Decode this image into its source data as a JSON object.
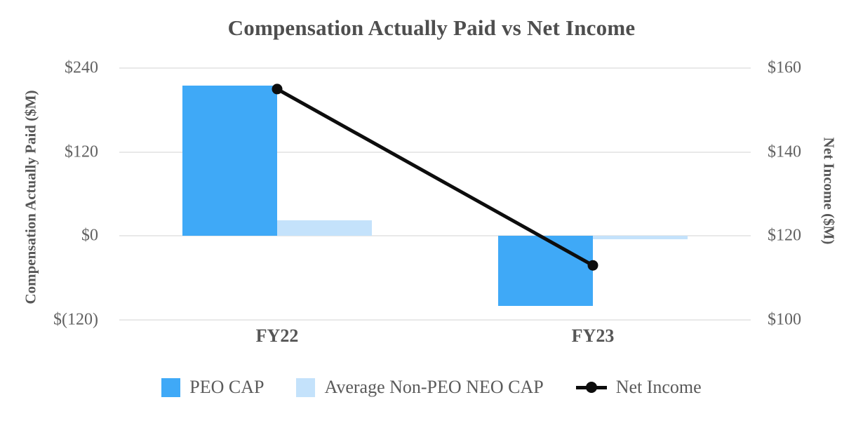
{
  "title": "Compensation Actually Paid vs Net Income",
  "chart_data": {
    "type": "bar",
    "subtype": "dual-axis combo (grouped bars + line)",
    "categories": [
      "FY22",
      "FY23"
    ],
    "series": [
      {
        "name": "PEO CAP",
        "type": "bar",
        "axis": "left",
        "color": "#3fa9f7",
        "values": [
          215,
          -100
        ]
      },
      {
        "name": "Average Non-PEO NEO CAP",
        "type": "bar",
        "axis": "left",
        "color": "#c4e2fb",
        "values": [
          22,
          -5
        ]
      },
      {
        "name": "Net Income",
        "type": "line",
        "axis": "right",
        "color": "#0d0d0d",
        "values": [
          155,
          113
        ]
      }
    ],
    "left_axis": {
      "title": "Compensation Actually Paid ($M)",
      "ticks": [
        "$240",
        "$120",
        "$0",
        "$(120)"
      ],
      "tick_values": [
        240,
        120,
        0,
        -120
      ],
      "range": [
        -120,
        240
      ]
    },
    "right_axis": {
      "title": "Net Income ($M)",
      "ticks": [
        "$160",
        "$140",
        "$120",
        "$100"
      ],
      "tick_values": [
        160,
        140,
        120,
        100
      ],
      "range": [
        100,
        160
      ]
    },
    "grid": true,
    "gridline_color": "#e9e9e9",
    "legend_position": "bottom",
    "background_color": "#ffffff",
    "text_color": "#595959"
  }
}
